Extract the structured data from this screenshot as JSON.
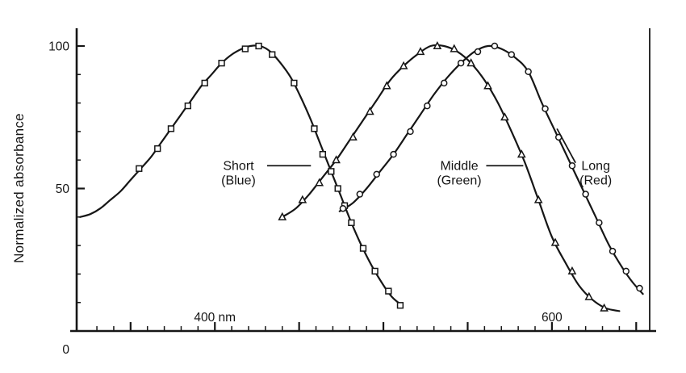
{
  "colors": {
    "ink": "#161616",
    "background": "#ffffff"
  },
  "chart_data": {
    "type": "line",
    "title": "",
    "ylabel": "Normalized absorbance",
    "xlabel": "",
    "x_range_nm": [
      318,
      658
    ],
    "y_range": [
      0,
      100
    ],
    "grid": false,
    "x_tick_labels": [
      {
        "nm": 400,
        "label": "400 nm"
      },
      {
        "nm": 600,
        "label": "600"
      }
    ],
    "y_tick_labels": [
      {
        "value": 0,
        "label": "0"
      },
      {
        "value": 50,
        "label": "50"
      },
      {
        "value": 100,
        "label": "100"
      }
    ],
    "x_minor_tick_step_nm": 10,
    "x_major_tick_step_nm": 50,
    "series": [
      {
        "id": "short-blue",
        "name": "Short (Blue)",
        "marker": "square",
        "curve": [
          [
            320,
            40
          ],
          [
            326,
            41
          ],
          [
            332,
            43
          ],
          [
            338,
            46
          ],
          [
            344,
            49
          ],
          [
            350,
            53
          ],
          [
            356,
            57
          ],
          [
            362,
            61
          ],
          [
            368,
            66
          ],
          [
            374,
            71
          ],
          [
            380,
            76
          ],
          [
            386,
            81
          ],
          [
            392,
            86
          ],
          [
            398,
            90
          ],
          [
            404,
            94
          ],
          [
            410,
            97
          ],
          [
            416,
            99
          ],
          [
            421,
            100
          ],
          [
            427,
            100
          ],
          [
            433,
            98
          ],
          [
            439,
            94
          ],
          [
            445,
            89
          ],
          [
            451,
            82
          ],
          [
            457,
            74
          ],
          [
            463,
            65
          ],
          [
            469,
            56
          ],
          [
            475,
            47
          ],
          [
            481,
            38
          ],
          [
            487,
            30
          ],
          [
            493,
            23
          ],
          [
            499,
            17
          ],
          [
            505,
            12
          ],
          [
            511,
            9
          ]
        ],
        "markers": [
          [
            355,
            57
          ],
          [
            366,
            64
          ],
          [
            374,
            71
          ],
          [
            384,
            79
          ],
          [
            394,
            87
          ],
          [
            404,
            94
          ],
          [
            418,
            99
          ],
          [
            426,
            100
          ],
          [
            434,
            97
          ],
          [
            447,
            87
          ],
          [
            459,
            71
          ],
          [
            464,
            62
          ],
          [
            469,
            56
          ],
          [
            473,
            50
          ],
          [
            477,
            44
          ],
          [
            481,
            38
          ],
          [
            488,
            29
          ],
          [
            495,
            21
          ],
          [
            503,
            14
          ],
          [
            510,
            9
          ]
        ]
      },
      {
        "id": "middle-green",
        "name": "Middle (Green)",
        "marker": "triangle",
        "curve": [
          [
            440,
            40
          ],
          [
            448,
            43
          ],
          [
            456,
            48
          ],
          [
            464,
            54
          ],
          [
            472,
            60
          ],
          [
            480,
            67
          ],
          [
            488,
            74
          ],
          [
            496,
            81
          ],
          [
            504,
            88
          ],
          [
            512,
            93
          ],
          [
            520,
            97
          ],
          [
            528,
            100
          ],
          [
            536,
            100
          ],
          [
            544,
            98
          ],
          [
            552,
            94
          ],
          [
            560,
            88
          ],
          [
            568,
            80
          ],
          [
            576,
            70
          ],
          [
            584,
            59
          ],
          [
            592,
            46
          ],
          [
            600,
            33
          ],
          [
            608,
            24
          ],
          [
            616,
            16
          ],
          [
            624,
            11
          ],
          [
            632,
            8
          ],
          [
            640,
            7
          ]
        ],
        "markers": [
          [
            440,
            40
          ],
          [
            452,
            46
          ],
          [
            462,
            52
          ],
          [
            472,
            60
          ],
          [
            482,
            68
          ],
          [
            492,
            77
          ],
          [
            502,
            86
          ],
          [
            512,
            93
          ],
          [
            522,
            98
          ],
          [
            532,
            100
          ],
          [
            542,
            99
          ],
          [
            552,
            94
          ],
          [
            562,
            86
          ],
          [
            572,
            75
          ],
          [
            582,
            62
          ],
          [
            592,
            46
          ],
          [
            602,
            31
          ],
          [
            612,
            21
          ],
          [
            622,
            12
          ],
          [
            631,
            8
          ]
        ]
      },
      {
        "id": "long-red",
        "name": "Long (Red)",
        "marker": "circle",
        "curve": [
          [
            474,
            42
          ],
          [
            482,
            45
          ],
          [
            490,
            50
          ],
          [
            498,
            56
          ],
          [
            506,
            62
          ],
          [
            514,
            69
          ],
          [
            522,
            76
          ],
          [
            530,
            83
          ],
          [
            538,
            89
          ],
          [
            546,
            94
          ],
          [
            554,
            98
          ],
          [
            562,
            100
          ],
          [
            570,
            99
          ],
          [
            578,
            96
          ],
          [
            586,
            91
          ],
          [
            594,
            80
          ],
          [
            602,
            70
          ],
          [
            610,
            60
          ],
          [
            618,
            50
          ],
          [
            626,
            40
          ],
          [
            634,
            30
          ],
          [
            642,
            22
          ],
          [
            648,
            17
          ],
          [
            654,
            13
          ]
        ],
        "markers": [
          [
            476,
            43
          ],
          [
            486,
            48
          ],
          [
            496,
            55
          ],
          [
            506,
            62
          ],
          [
            516,
            70
          ],
          [
            526,
            79
          ],
          [
            536,
            87
          ],
          [
            546,
            94
          ],
          [
            556,
            98
          ],
          [
            566,
            100
          ],
          [
            576,
            97
          ],
          [
            586,
            91
          ],
          [
            596,
            78
          ],
          [
            604,
            68
          ],
          [
            612,
            58
          ],
          [
            620,
            48
          ],
          [
            628,
            38
          ],
          [
            636,
            28
          ],
          [
            644,
            21
          ],
          [
            652,
            15
          ]
        ]
      }
    ],
    "annotations": [
      {
        "id": "short-label",
        "lines": [
          "Short",
          "(Blue)"
        ],
        "text_at": {
          "nm": 414,
          "value": 56
        },
        "leader": {
          "from": {
            "nm": 431,
            "value": 58
          },
          "to": {
            "nm": 457,
            "value": 58
          }
        }
      },
      {
        "id": "middle-label",
        "lines": [
          "Middle",
          "(Green)"
        ],
        "text_at": {
          "nm": 545,
          "value": 56
        },
        "leader": {
          "from": {
            "nm": 561,
            "value": 58
          },
          "to": {
            "nm": 583,
            "value": 58
          }
        }
      },
      {
        "id": "long-label",
        "lines": [
          "Long",
          "(Red)"
        ],
        "text_at": {
          "nm": 626,
          "value": 56
        },
        "leader": {
          "from": {
            "nm": 614,
            "value": 59
          },
          "to": {
            "nm": 603,
            "value": 71
          }
        }
      }
    ]
  }
}
